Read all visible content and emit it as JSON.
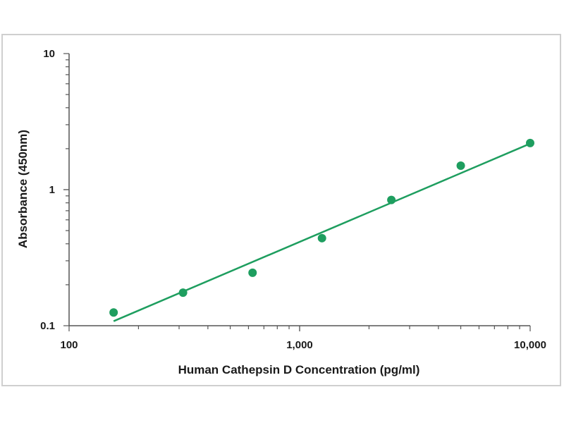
{
  "chart_data": {
    "type": "scatter",
    "title": "",
    "xlabel": "Human Cathepsin D Concentration (pg/ml)",
    "ylabel": "Absorbance (450nm)",
    "xscale": "log",
    "yscale": "log",
    "xlim": [
      100,
      10000
    ],
    "ylim": [
      0.1,
      10
    ],
    "x_ticks": [
      100,
      1000,
      10000
    ],
    "x_tick_labels": [
      "100",
      "1,000",
      "10,000"
    ],
    "y_ticks": [
      0.1,
      1,
      10
    ],
    "y_tick_labels": [
      "0.1",
      "1",
      "10"
    ],
    "grid": false,
    "legend": "none",
    "color": "#1e9e5f",
    "series": [
      {
        "x": [
          156,
          312,
          625,
          1250,
          2500,
          5000,
          10000
        ],
        "y": [
          0.125,
          0.175,
          0.245,
          0.44,
          0.84,
          1.5,
          2.2
        ]
      }
    ],
    "fit_line": {
      "x": [
        156,
        10000
      ],
      "y": [
        0.108,
        2.18
      ]
    }
  }
}
